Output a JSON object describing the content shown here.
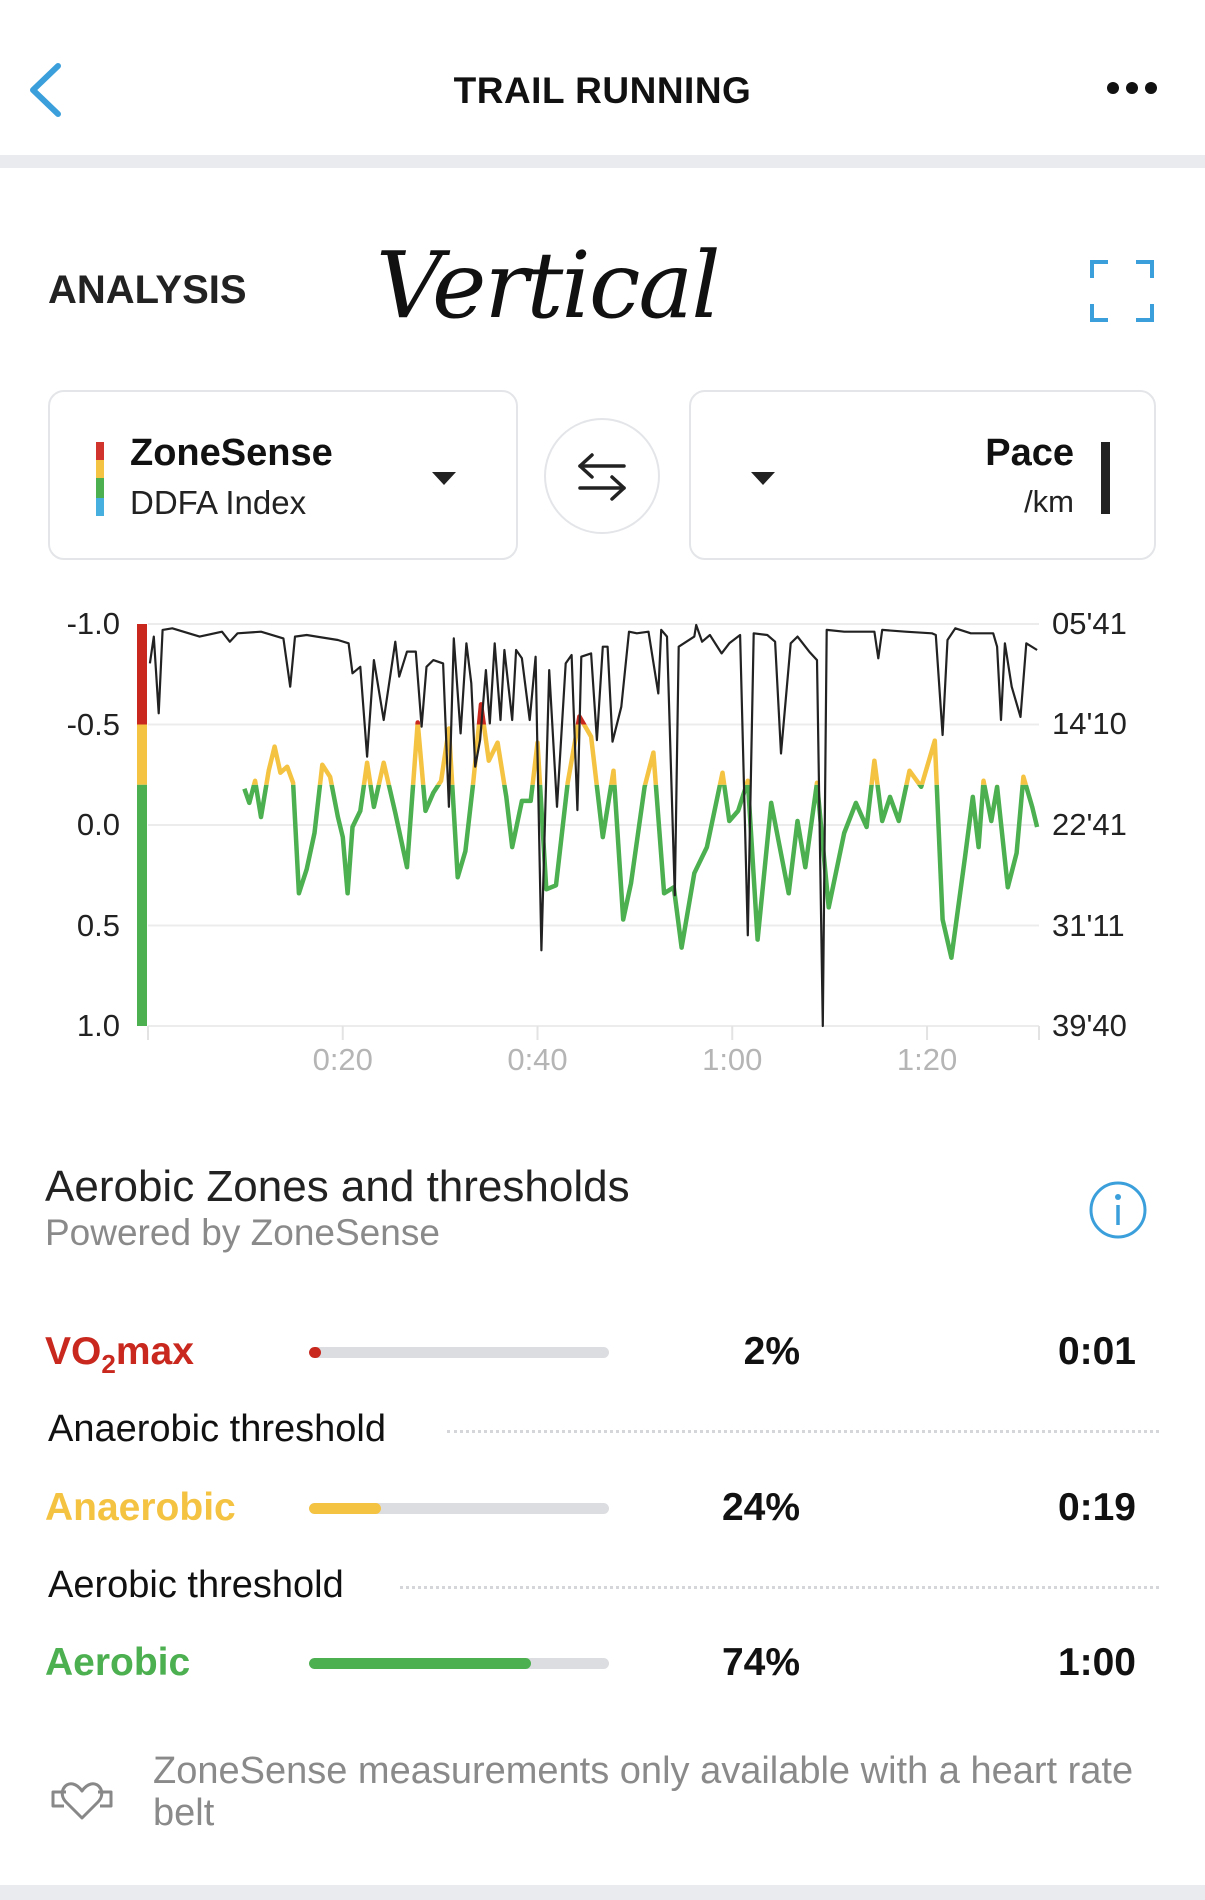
{
  "header": {
    "title": "TRAIL RUNNING",
    "back_icon": "chevron-left-icon",
    "more_icon": "more-dots-icon"
  },
  "analysis": {
    "title": "ANALYSIS",
    "annotation": "Vertical",
    "expand_icon": "expand-icon"
  },
  "selectors": {
    "left": {
      "name": "ZoneSense",
      "sub": "DDFA Index"
    },
    "right": {
      "name": "Pace",
      "sub": "/km"
    },
    "swap_icon": "swap-arrows-icon"
  },
  "colors": {
    "accent": "#3a9fdb",
    "vo2max": "#c8281e",
    "anaerobic": "#f5c342",
    "aerobic": "#4caf50",
    "pace": "#222222"
  },
  "chart_data": {
    "type": "line",
    "x_unit": "minutes",
    "xlim": [
      0,
      91.5
    ],
    "x_ticks": [
      {
        "v": 20,
        "label": "0:20"
      },
      {
        "v": 40,
        "label": "0:40"
      },
      {
        "v": 60,
        "label": "1:00"
      },
      {
        "v": 80,
        "label": "1:20"
      }
    ],
    "left_axis": {
      "label": "ZoneSense DDFA Index",
      "ylim": [
        -1.0,
        1.0
      ],
      "inverted": true,
      "ticks": [
        {
          "v": -1.0,
          "label": "-1.0"
        },
        {
          "v": -0.5,
          "label": "-0.5"
        },
        {
          "v": 0.0,
          "label": "0.0"
        },
        {
          "v": 0.5,
          "label": "0.5"
        },
        {
          "v": 1.0,
          "label": "1.0"
        }
      ],
      "zones": [
        {
          "name": "VO2max",
          "from": -1.0,
          "to": -0.5
        },
        {
          "name": "Anaerobic",
          "from": -0.5,
          "to": -0.2
        },
        {
          "name": "Aerobic",
          "from": -0.2,
          "to": 1.0
        }
      ]
    },
    "right_axis": {
      "label": "Pace /km",
      "unit": "seconds per km",
      "ylim": [
        341,
        2380
      ],
      "inverted": true,
      "ticks": [
        {
          "v": 341,
          "label": "05'41"
        },
        {
          "v": 850,
          "label": "14'10"
        },
        {
          "v": 1361,
          "label": "22'41"
        },
        {
          "v": 1871,
          "label": "31'11"
        },
        {
          "v": 2380,
          "label": "39'40"
        }
      ]
    },
    "grid": true,
    "series": [
      {
        "name": "DDFA Index",
        "axis": "left",
        "points": [
          [
            9.9,
            -0.18
          ],
          [
            10.4,
            -0.11
          ],
          [
            11.0,
            -0.22
          ],
          [
            11.6,
            -0.04
          ],
          [
            12.4,
            -0.27
          ],
          [
            13.0,
            -0.39
          ],
          [
            13.6,
            -0.26
          ],
          [
            14.3,
            -0.29
          ],
          [
            14.9,
            -0.21
          ],
          [
            15.5,
            0.34
          ],
          [
            16.3,
            0.22
          ],
          [
            17.1,
            0.04
          ],
          [
            17.9,
            -0.3
          ],
          [
            18.7,
            -0.24
          ],
          [
            19.5,
            -0.04
          ],
          [
            20.0,
            0.06
          ],
          [
            20.5,
            0.34
          ],
          [
            21.0,
            0.01
          ],
          [
            21.8,
            -0.07
          ],
          [
            22.5,
            -0.31
          ],
          [
            23.2,
            -0.09
          ],
          [
            24.2,
            -0.31
          ],
          [
            25.4,
            -0.06
          ],
          [
            26.6,
            0.21
          ],
          [
            27.7,
            -0.51
          ],
          [
            28.5,
            -0.07
          ],
          [
            29.3,
            -0.16
          ],
          [
            30.1,
            -0.22
          ],
          [
            30.9,
            -0.48
          ],
          [
            31.8,
            0.26
          ],
          [
            32.6,
            0.13
          ],
          [
            33.4,
            -0.21
          ],
          [
            34.2,
            -0.6
          ],
          [
            35.0,
            -0.32
          ],
          [
            35.9,
            -0.41
          ],
          [
            36.8,
            -0.14
          ],
          [
            37.4,
            0.11
          ],
          [
            38.4,
            -0.12
          ],
          [
            39.3,
            -0.12
          ],
          [
            40.0,
            -0.41
          ],
          [
            40.9,
            0.32
          ],
          [
            41.9,
            0.3
          ],
          [
            43.1,
            -0.21
          ],
          [
            44.3,
            -0.54
          ],
          [
            45.5,
            -0.44
          ],
          [
            46.7,
            0.06
          ],
          [
            47.8,
            -0.27
          ],
          [
            48.8,
            0.47
          ],
          [
            49.6,
            0.29
          ],
          [
            51.0,
            -0.19
          ],
          [
            51.9,
            -0.36
          ],
          [
            53.0,
            0.34
          ],
          [
            54.0,
            0.31
          ],
          [
            54.8,
            0.61
          ],
          [
            56.1,
            0.24
          ],
          [
            57.4,
            0.11
          ],
          [
            59.0,
            -0.26
          ],
          [
            59.7,
            -0.02
          ],
          [
            60.6,
            -0.07
          ],
          [
            61.6,
            -0.22
          ],
          [
            62.6,
            0.57
          ],
          [
            64.0,
            -0.11
          ],
          [
            65.8,
            0.34
          ],
          [
            66.7,
            -0.02
          ],
          [
            67.5,
            0.21
          ],
          [
            68.7,
            -0.21
          ],
          [
            69.9,
            0.41
          ],
          [
            71.5,
            0.04
          ],
          [
            72.7,
            -0.11
          ],
          [
            73.8,
            0.01
          ],
          [
            74.6,
            -0.32
          ],
          [
            75.4,
            -0.02
          ],
          [
            76.2,
            -0.14
          ],
          [
            77.1,
            -0.02
          ],
          [
            78.2,
            -0.27
          ],
          [
            79.4,
            -0.19
          ],
          [
            80.8,
            -0.42
          ],
          [
            81.6,
            0.47
          ],
          [
            82.5,
            0.66
          ],
          [
            83.9,
            0.16
          ],
          [
            84.7,
            -0.14
          ],
          [
            85.3,
            0.11
          ],
          [
            85.8,
            -0.22
          ],
          [
            86.6,
            -0.02
          ],
          [
            87.2,
            -0.19
          ],
          [
            88.3,
            0.31
          ],
          [
            89.2,
            0.14
          ],
          [
            89.9,
            -0.24
          ],
          [
            90.8,
            -0.09
          ],
          [
            91.3,
            0.01
          ]
        ]
      },
      {
        "name": "Pace",
        "axis": "right",
        "points": [
          [
            0.2,
            541
          ],
          [
            0.6,
            405
          ],
          [
            1.1,
            794
          ],
          [
            1.5,
            371
          ],
          [
            2.5,
            363
          ],
          [
            5.3,
            405
          ],
          [
            7.6,
            380
          ],
          [
            8.4,
            431
          ],
          [
            9.2,
            388
          ],
          [
            11.6,
            380
          ],
          [
            13.9,
            414
          ],
          [
            14.6,
            659
          ],
          [
            15.1,
            405
          ],
          [
            16.3,
            397
          ],
          [
            19.5,
            422
          ],
          [
            20.6,
            439
          ],
          [
            21.0,
            591
          ],
          [
            21.8,
            558
          ],
          [
            22.5,
            1014
          ],
          [
            23.2,
            524
          ],
          [
            24.2,
            828
          ],
          [
            25.4,
            431
          ],
          [
            25.8,
            608
          ],
          [
            26.6,
            481
          ],
          [
            27.5,
            481
          ],
          [
            28.1,
            862
          ],
          [
            28.6,
            558
          ],
          [
            29.3,
            524
          ],
          [
            30.3,
            541
          ],
          [
            30.9,
            1268
          ],
          [
            31.4,
            414
          ],
          [
            32.1,
            896
          ],
          [
            32.7,
            439
          ],
          [
            33.2,
            642
          ],
          [
            33.6,
            1065
          ],
          [
            34.1,
            930
          ],
          [
            34.7,
            575
          ],
          [
            35.1,
            845
          ],
          [
            35.6,
            439
          ],
          [
            36.2,
            828
          ],
          [
            36.6,
            473
          ],
          [
            37.4,
            828
          ],
          [
            37.8,
            473
          ],
          [
            38.4,
            515
          ],
          [
            39.2,
            828
          ],
          [
            39.8,
            507
          ],
          [
            40.4,
            1996
          ],
          [
            41.2,
            575
          ],
          [
            42.0,
            1268
          ],
          [
            42.9,
            541
          ],
          [
            43.5,
            498
          ],
          [
            44.1,
            1285
          ],
          [
            44.5,
            507
          ],
          [
            45.5,
            490
          ],
          [
            46.1,
            930
          ],
          [
            46.7,
            456
          ],
          [
            47.2,
            456
          ],
          [
            47.7,
            938
          ],
          [
            48.6,
            761
          ],
          [
            49.4,
            380
          ],
          [
            50.2,
            388
          ],
          [
            51.4,
            380
          ],
          [
            52.4,
            693
          ],
          [
            52.7,
            371
          ],
          [
            53.3,
            405
          ],
          [
            54.1,
            1717
          ],
          [
            54.5,
            456
          ],
          [
            56.1,
            405
          ],
          [
            56.3,
            346
          ],
          [
            56.9,
            431
          ],
          [
            57.7,
            397
          ],
          [
            58.9,
            490
          ],
          [
            59.7,
            439
          ],
          [
            60.8,
            397
          ],
          [
            61.6,
            1920
          ],
          [
            62.2,
            388
          ],
          [
            63.6,
            397
          ],
          [
            64.4,
            431
          ],
          [
            65.0,
            998
          ],
          [
            66.0,
            439
          ],
          [
            66.7,
            405
          ],
          [
            67.9,
            481
          ],
          [
            68.7,
            524
          ],
          [
            69.3,
            2380
          ],
          [
            69.7,
            371
          ],
          [
            71.5,
            380
          ],
          [
            74.6,
            380
          ],
          [
            75.0,
            515
          ],
          [
            75.4,
            371
          ],
          [
            77.8,
            380
          ],
          [
            80.5,
            388
          ],
          [
            80.9,
            397
          ],
          [
            81.6,
            904
          ],
          [
            82.1,
            422
          ],
          [
            82.9,
            363
          ],
          [
            84.5,
            388
          ],
          [
            86.8,
            388
          ],
          [
            87.2,
            456
          ],
          [
            87.6,
            828
          ],
          [
            88.0,
            439
          ],
          [
            88.7,
            659
          ],
          [
            89.6,
            812
          ],
          [
            90.2,
            439
          ],
          [
            91.3,
            473
          ]
        ]
      }
    ]
  },
  "zones_section": {
    "title": "Aerobic Zones and thresholds",
    "subtitle": "Powered by ZoneSense",
    "info_icon": "info-icon",
    "vo2max": {
      "label_main": "VO",
      "label_sub": "2",
      "label_rest": "max",
      "percent_text": "2%",
      "fraction": 0.02,
      "time": "0:01"
    },
    "anaerobic_threshold": "Anaerobic threshold",
    "anaerobic": {
      "label": "Anaerobic",
      "percent_text": "24%",
      "fraction": 0.24,
      "time": "0:19"
    },
    "aerobic_threshold": "Aerobic threshold",
    "aerobic": {
      "label": "Aerobic",
      "percent_text": "74%",
      "fraction": 0.74,
      "time": "1:00"
    }
  },
  "footer": {
    "note": "ZoneSense measurements only available with a heart rate belt",
    "icon": "heart-rate-belt-icon"
  }
}
